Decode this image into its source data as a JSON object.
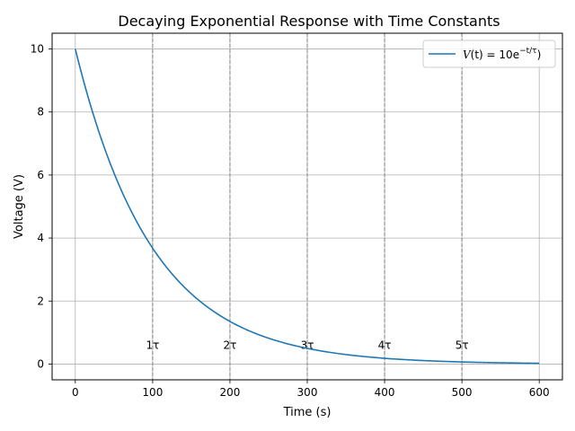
{
  "chart_data": {
    "type": "line",
    "title": "Decaying Exponential Response with Time Constants",
    "xlabel": "Time (s)",
    "ylabel": "Voltage (V)",
    "xlim": [
      -30,
      630
    ],
    "ylim": [
      -0.5,
      10.5
    ],
    "xticks": [
      0,
      100,
      200,
      300,
      400,
      500,
      600
    ],
    "yticks": [
      0,
      2,
      4,
      6,
      8,
      10
    ],
    "grid": true,
    "legend_position": "top-right",
    "series": [
      {
        "name": "V(t) = 10e^{-t/τ})",
        "color": "#1f77b4",
        "amplitude": 10,
        "tau": 100,
        "t_start": 0,
        "t_end": 600,
        "x": [
          0,
          25,
          50,
          75,
          100,
          125,
          150,
          175,
          200,
          225,
          250,
          275,
          300,
          325,
          350,
          375,
          400,
          425,
          450,
          475,
          500,
          525,
          550,
          575,
          600
        ],
        "y": [
          10.0,
          7.79,
          6.07,
          4.72,
          3.68,
          2.87,
          2.23,
          1.74,
          1.35,
          1.05,
          0.82,
          0.64,
          0.5,
          0.39,
          0.3,
          0.24,
          0.18,
          0.14,
          0.11,
          0.09,
          0.07,
          0.05,
          0.04,
          0.03,
          0.02
        ]
      }
    ],
    "vlines": [
      {
        "x": 100,
        "label": "1τ"
      },
      {
        "x": 200,
        "label": "2τ"
      },
      {
        "x": 300,
        "label": "3τ"
      },
      {
        "x": 400,
        "label": "4τ"
      },
      {
        "x": 500,
        "label": "5τ"
      }
    ],
    "vline_label_y": 0.6,
    "vline_color": "#808080"
  },
  "legend": {
    "prefix": "V",
    "arg": "(t) = 10e",
    "exponent": "−t/τ",
    "suffix": ")"
  }
}
